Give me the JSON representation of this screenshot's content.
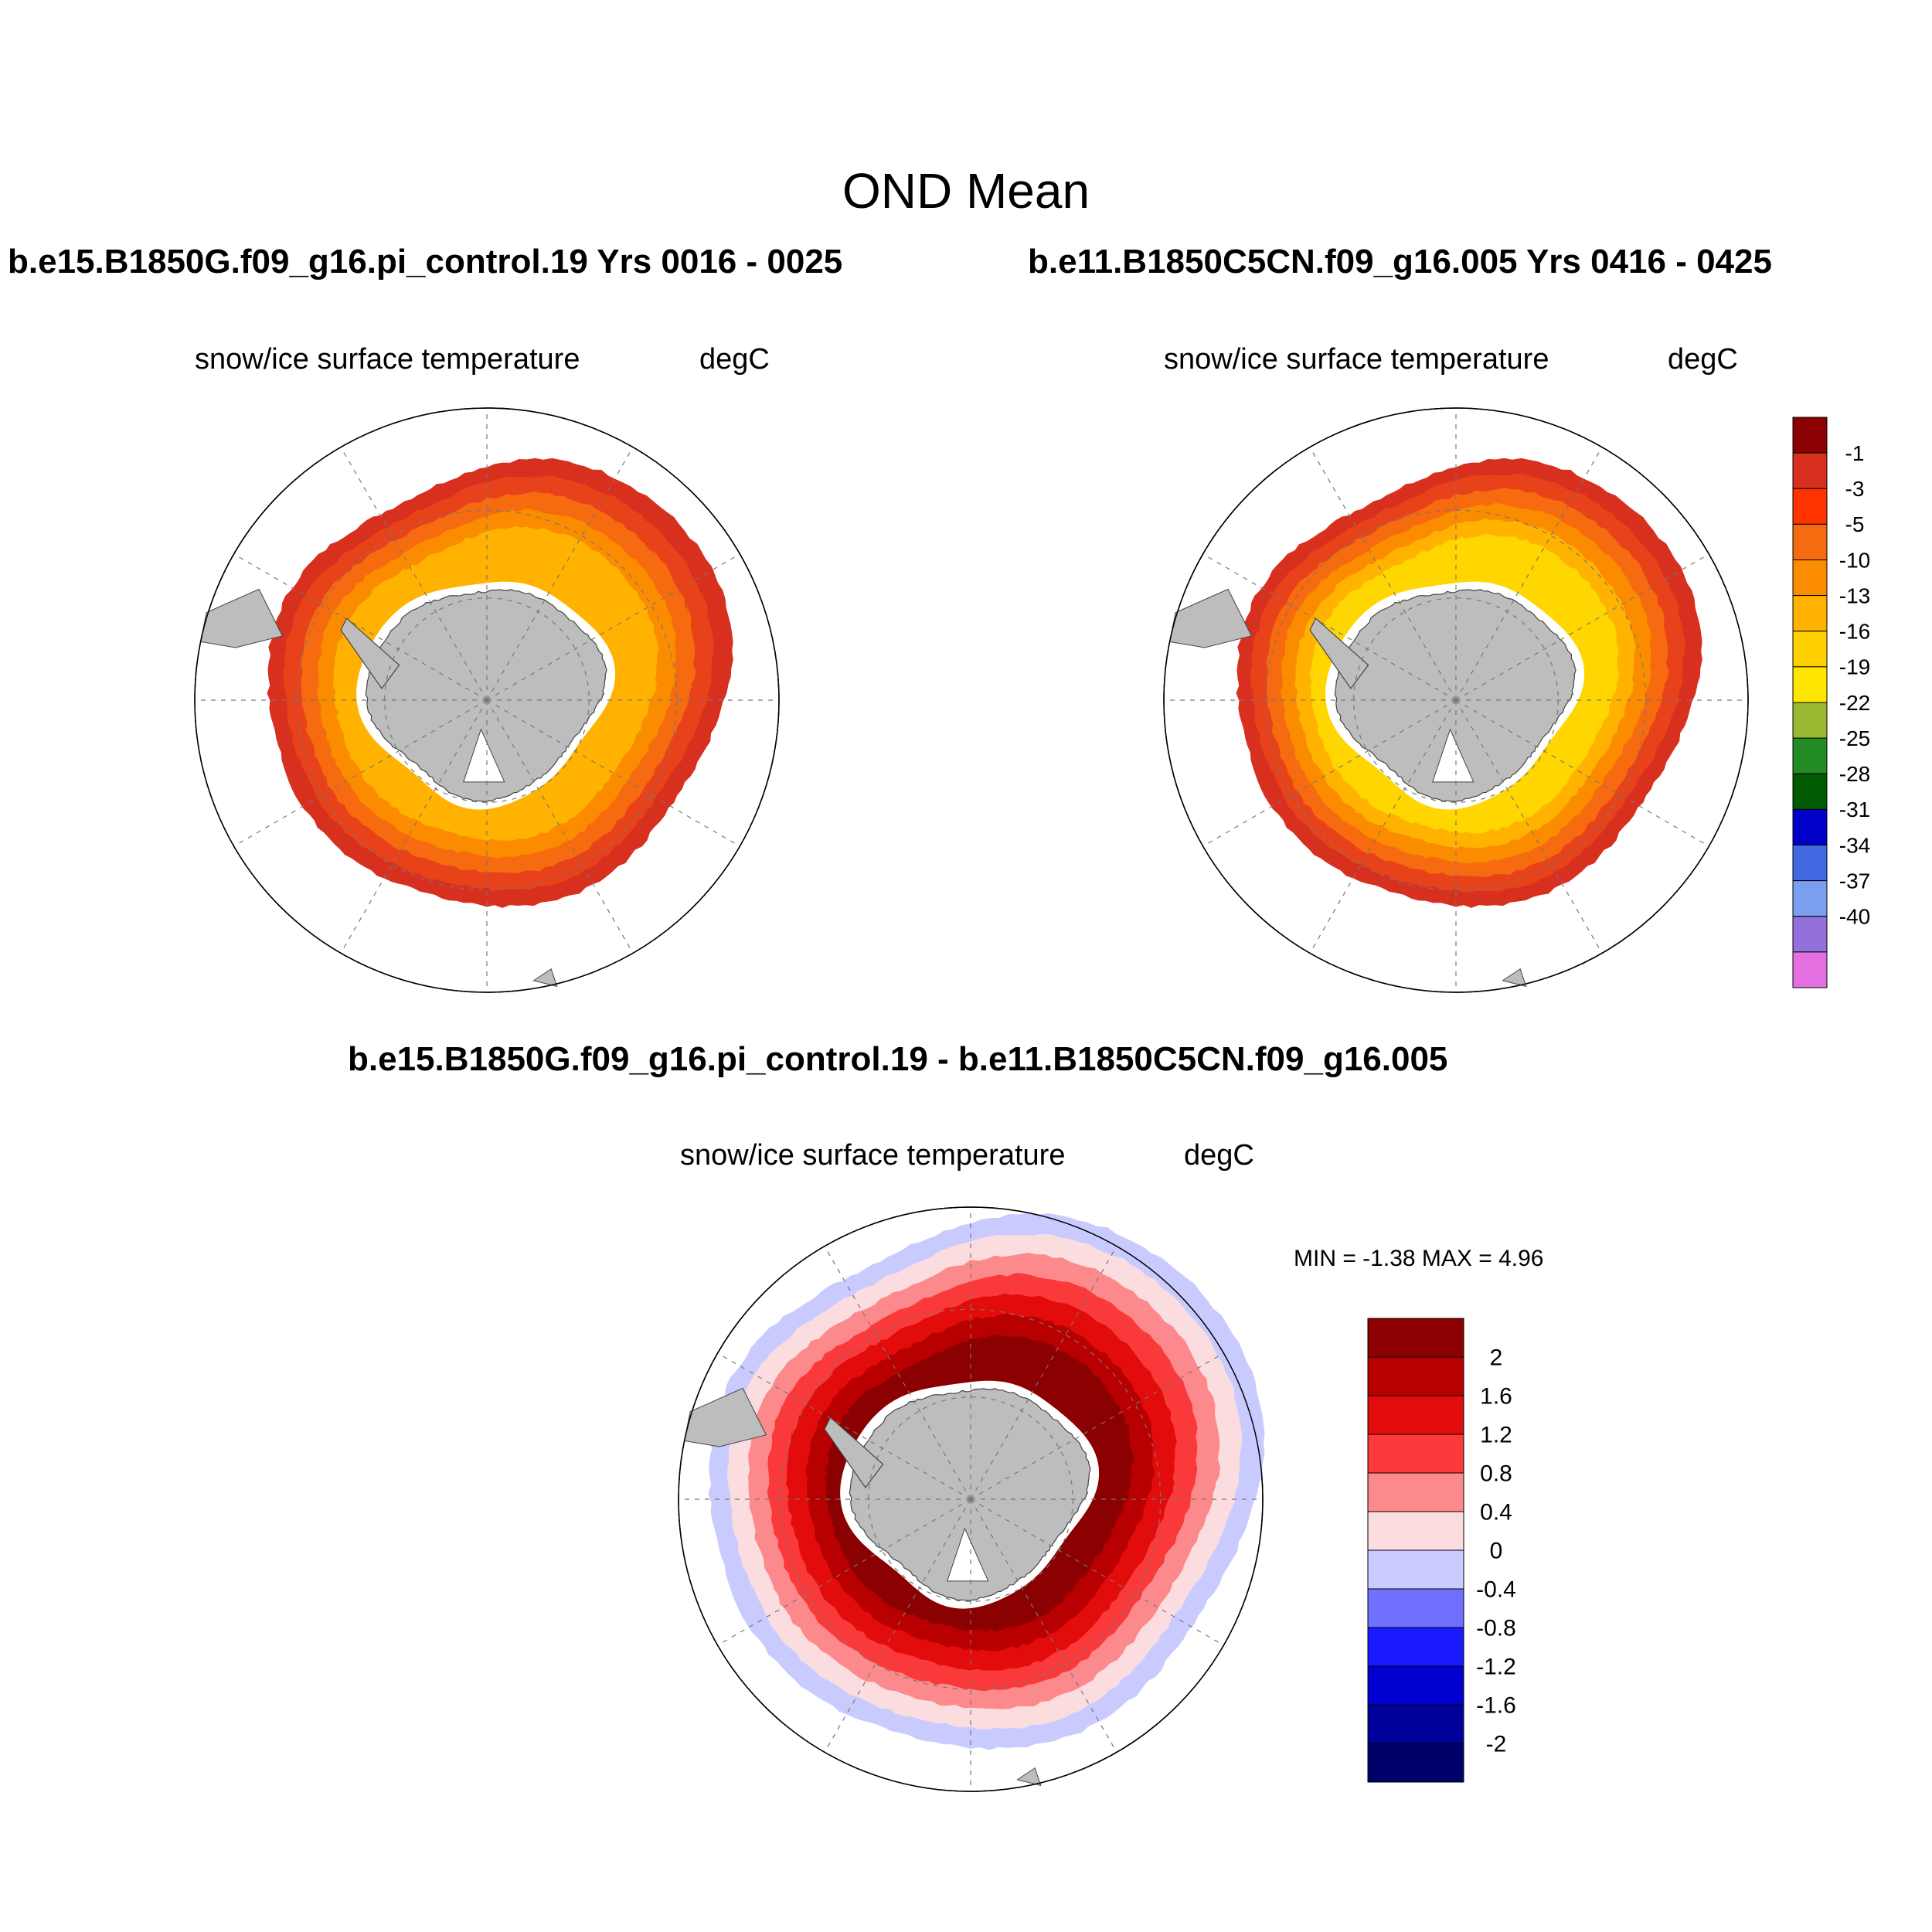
{
  "figure": {
    "title": "OND Mean"
  },
  "panels": [
    {
      "id": "case1",
      "case_label": "b.e15.B1850G.f09_g16.pi_control.19  Yrs 0016 - 0025",
      "variable": "snow/ice surface temperature",
      "units": "degC",
      "bands_outer_to_inner": [
        {
          "range": "-3 to -1",
          "color": "#d7301f"
        },
        {
          "range": "-5 to -3",
          "color": "#e8421a"
        },
        {
          "range": "-10 to -5",
          "color": "#f66a10"
        },
        {
          "range": "-13 to -10",
          "color": "#fb8c00"
        },
        {
          "range": "-16 to -13",
          "color": "#ffb300"
        }
      ]
    },
    {
      "id": "case2",
      "case_label": "b.e11.B1850C5CN.f09_g16.005  Yrs 0416 - 0425",
      "variable": "snow/ice surface temperature",
      "units": "degC",
      "bands_outer_to_inner": [
        {
          "range": "-3 to -1",
          "color": "#d7301f"
        },
        {
          "range": "-5 to -3",
          "color": "#e8421a"
        },
        {
          "range": "-10 to -5",
          "color": "#f66a10"
        },
        {
          "range": "-13 to -10",
          "color": "#fb8c00"
        },
        {
          "range": "-16 to -13",
          "color": "#ffb300"
        },
        {
          "range": "-19 to -16",
          "color": "#ffd600"
        }
      ]
    },
    {
      "id": "diff",
      "case_label": "b.e15.B1850G.f09_g16.pi_control.19 - b.e11.B1850C5CN.f09_g16.005",
      "variable": "snow/ice surface temperature",
      "units": "degC",
      "min_max_text": "MIN =  -1.38 MAX =   4.96",
      "min": -1.38,
      "max": 4.96,
      "bands_outer_to_inner": [
        {
          "range": "-0.4 to 0",
          "color": "#c9cbff"
        },
        {
          "range": "0 to 0.4",
          "color": "#fbdde0"
        },
        {
          "range": "0.4 to 0.8",
          "color": "#fc8a8c"
        },
        {
          "range": "0.8 to 1.2",
          "color": "#fa3a3a"
        },
        {
          "range": "1.2 to 1.6",
          "color": "#e30c0c"
        },
        {
          "range": "1.6 to 2",
          "color": "#b80000"
        },
        {
          "range": "> 2",
          "color": "#8b0000"
        }
      ]
    }
  ],
  "colorbar_abs": {
    "labels": [
      "-1",
      "-3",
      "-5",
      "-10",
      "-13",
      "-16",
      "-19",
      "-22",
      "-25",
      "-28",
      "-31",
      "-34",
      "-37",
      "-40"
    ],
    "colors": [
      "#8b0000",
      "#d7301f",
      "#ff3300",
      "#f66a10",
      "#fb8c00",
      "#ffb300",
      "#ffd000",
      "#ffe600",
      "#9ab832",
      "#238b23",
      "#005a00",
      "#0000c8",
      "#4169e1",
      "#7b9ff0",
      "#9370db",
      "#e36fe0"
    ]
  },
  "colorbar_diff": {
    "labels": [
      "2",
      "1.6",
      "1.2",
      "0.8",
      "0.4",
      "0",
      "-0.4",
      "-0.8",
      "-1.2",
      "-1.6",
      "-2"
    ],
    "colors": [
      "#8b0000",
      "#b80000",
      "#e30c0c",
      "#fa3a3a",
      "#fc8a8c",
      "#fbdde0",
      "#c9cbff",
      "#7070ff",
      "#1a1aff",
      "#0000d0",
      "#00009a",
      "#00006a"
    ]
  },
  "map_style": {
    "land_color": "#bdbdbd",
    "ocean_color": "#ffffff",
    "grid_color": "#777777"
  }
}
